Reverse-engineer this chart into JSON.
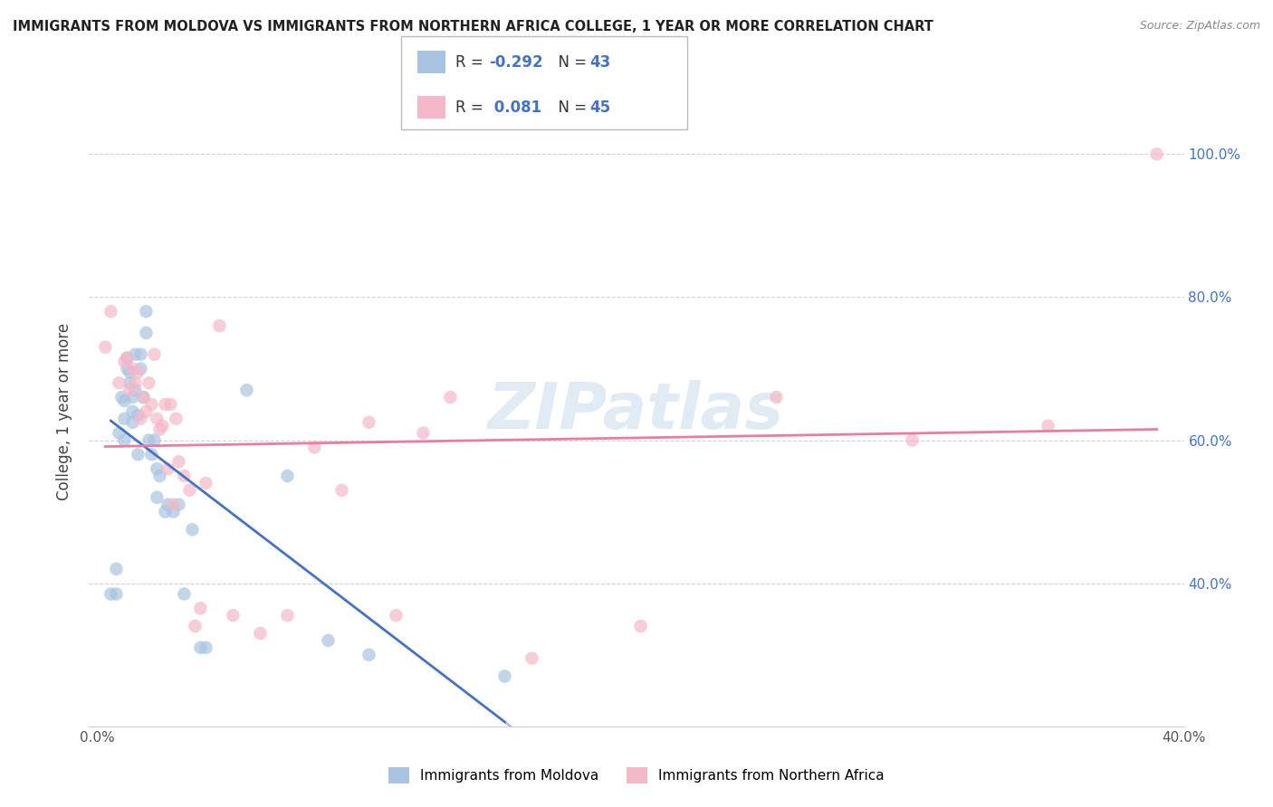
{
  "title": "IMMIGRANTS FROM MOLDOVA VS IMMIGRANTS FROM NORTHERN AFRICA COLLEGE, 1 YEAR OR MORE CORRELATION CHART",
  "source": "Source: ZipAtlas.com",
  "ylabel": "College, 1 year or more",
  "R_moldova": -0.292,
  "N_moldova": 43,
  "R_northafrica": 0.081,
  "N_northafrica": 45,
  "color_moldova": "#a8c4e0",
  "color_northafrica": "#f4b8c8",
  "color_line_moldova": "#4472c4",
  "color_line_northafrica": "#e87d9e",
  "color_value": "#4472c4",
  "watermark": "ZIPatlas",
  "xlim_min": 0.0,
  "xlim_max": 0.4,
  "ylim_min": 0.2,
  "ylim_max": 1.08,
  "moldova_x": [
    0.005,
    0.007,
    0.007,
    0.008,
    0.009,
    0.01,
    0.01,
    0.01,
    0.011,
    0.011,
    0.012,
    0.012,
    0.013,
    0.013,
    0.013,
    0.014,
    0.014,
    0.015,
    0.015,
    0.016,
    0.016,
    0.017,
    0.018,
    0.018,
    0.019,
    0.02,
    0.021,
    0.022,
    0.022,
    0.023,
    0.025,
    0.026,
    0.028,
    0.03,
    0.032,
    0.035,
    0.038,
    0.04,
    0.055,
    0.07,
    0.085,
    0.1,
    0.15
  ],
  "moldova_y": [
    0.385,
    0.42,
    0.385,
    0.61,
    0.66,
    0.655,
    0.63,
    0.6,
    0.715,
    0.7,
    0.695,
    0.68,
    0.66,
    0.64,
    0.625,
    0.72,
    0.67,
    0.635,
    0.58,
    0.72,
    0.7,
    0.66,
    0.78,
    0.75,
    0.6,
    0.58,
    0.6,
    0.56,
    0.52,
    0.55,
    0.5,
    0.51,
    0.5,
    0.51,
    0.385,
    0.475,
    0.31,
    0.31,
    0.67,
    0.55,
    0.32,
    0.3,
    0.27
  ],
  "northafrica_x": [
    0.003,
    0.005,
    0.008,
    0.01,
    0.011,
    0.012,
    0.013,
    0.014,
    0.015,
    0.016,
    0.017,
    0.018,
    0.019,
    0.02,
    0.021,
    0.022,
    0.023,
    0.024,
    0.025,
    0.026,
    0.027,
    0.028,
    0.029,
    0.03,
    0.032,
    0.034,
    0.036,
    0.038,
    0.04,
    0.045,
    0.05,
    0.06,
    0.07,
    0.08,
    0.09,
    0.1,
    0.11,
    0.12,
    0.13,
    0.16,
    0.2,
    0.25,
    0.3,
    0.35,
    0.39
  ],
  "northafrica_y": [
    0.73,
    0.78,
    0.68,
    0.71,
    0.715,
    0.67,
    0.7,
    0.68,
    0.695,
    0.63,
    0.66,
    0.64,
    0.68,
    0.65,
    0.72,
    0.63,
    0.615,
    0.62,
    0.65,
    0.56,
    0.65,
    0.51,
    0.63,
    0.57,
    0.55,
    0.53,
    0.34,
    0.365,
    0.54,
    0.76,
    0.355,
    0.33,
    0.355,
    0.59,
    0.53,
    0.625,
    0.355,
    0.61,
    0.66,
    0.295,
    0.34,
    0.66,
    0.6,
    0.62,
    1.0
  ]
}
